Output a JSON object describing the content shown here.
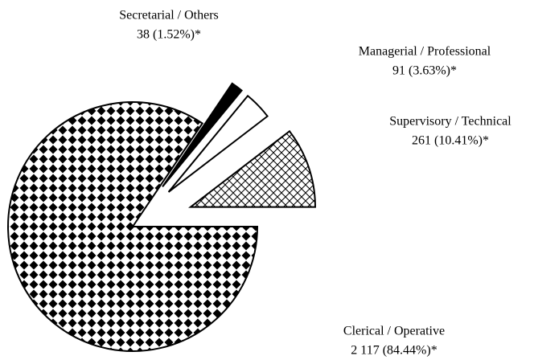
{
  "chart_data": {
    "type": "pie",
    "categories": [
      "Supervisory / Technical",
      "Managerial / Professional",
      "Secretarial / Others",
      "Clerical / Operative"
    ],
    "values": [
      261,
      91,
      38,
      2117
    ],
    "value_labels": [
      "261 (10.41%)*",
      "91 (3.63%)*",
      "38 (1.52%)*",
      "2 117 (84.44%)*"
    ]
  }
}
